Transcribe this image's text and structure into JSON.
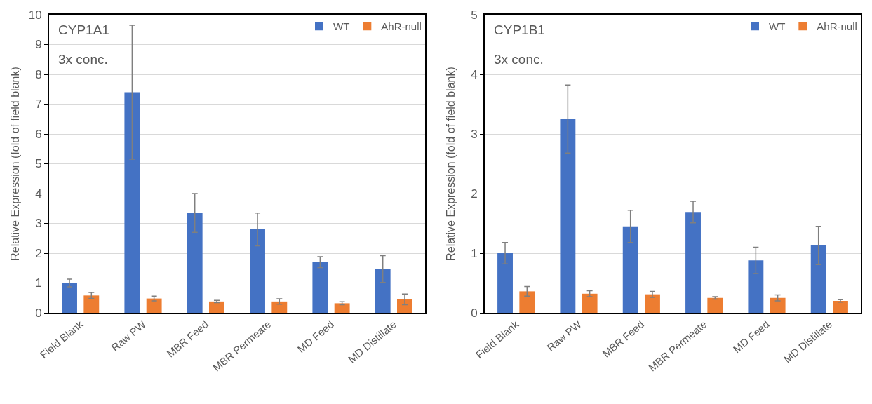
{
  "chart_data": [
    {
      "type": "bar",
      "ylabel": "Relative Expression (fold of field blank)",
      "annotations": [
        "CYP1A1",
        "3x conc."
      ],
      "categories": [
        "Field Blank",
        "Raw PW",
        "MBR Feed",
        "MBR Permeate",
        "MD Feed",
        "MD Distillate"
      ],
      "series": [
        {
          "name": "WT",
          "color": "#4472c4",
          "values": [
            1.0,
            7.4,
            3.35,
            2.8,
            1.7,
            1.47
          ],
          "errors": [
            0.13,
            2.25,
            0.65,
            0.55,
            0.18,
            0.45
          ]
        },
        {
          "name": "AhR-null",
          "color": "#ed7d31",
          "values": [
            0.58,
            0.48,
            0.38,
            0.38,
            0.32,
            0.45
          ],
          "errors": [
            0.1,
            0.08,
            0.04,
            0.09,
            0.05,
            0.18
          ]
        }
      ],
      "ylim": [
        0,
        10
      ],
      "yticks": [
        0,
        1,
        2,
        3,
        4,
        5,
        6,
        7,
        8,
        9,
        10
      ],
      "grid": "y",
      "legend": "top right"
    },
    {
      "type": "bar",
      "ylabel": "Relative Expression (fold of field blank)",
      "annotations": [
        "CYP1B1",
        "3x conc."
      ],
      "categories": [
        "Field Blank",
        "Raw PW",
        "MBR Feed",
        "MBR Permeate",
        "MD Feed",
        "MD Distillate"
      ],
      "series": [
        {
          "name": "WT",
          "color": "#4472c4",
          "values": [
            1.0,
            3.25,
            1.45,
            1.69,
            0.88,
            1.13
          ],
          "errors": [
            0.18,
            0.57,
            0.27,
            0.18,
            0.22,
            0.32
          ]
        },
        {
          "name": "AhR-null",
          "color": "#ed7d31",
          "values": [
            0.36,
            0.32,
            0.31,
            0.25,
            0.25,
            0.2
          ],
          "errors": [
            0.08,
            0.05,
            0.05,
            0.02,
            0.05,
            0.02
          ]
        }
      ],
      "ylim": [
        0,
        5
      ],
      "yticks": [
        0,
        1,
        2,
        3,
        4,
        5
      ],
      "grid": "y",
      "legend": "top right"
    }
  ]
}
